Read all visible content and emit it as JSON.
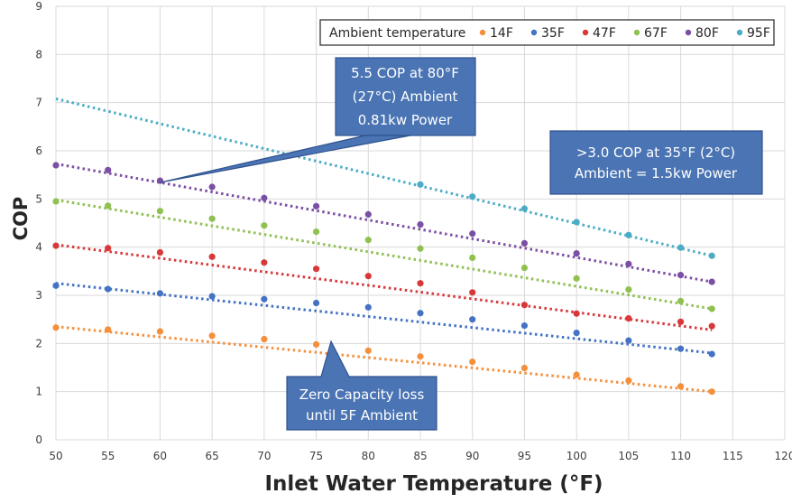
{
  "chart_data": {
    "type": "scatter",
    "title": "",
    "xlabel": "Inlet Water Temperature (°F)",
    "ylabel": "COP",
    "xlim": [
      50,
      120
    ],
    "ylim": [
      0,
      9
    ],
    "x_ticks": [
      50,
      55,
      60,
      65,
      70,
      75,
      80,
      85,
      90,
      95,
      100,
      105,
      110,
      115,
      120
    ],
    "y_ticks": [
      0,
      1,
      2,
      3,
      4,
      5,
      6,
      7,
      8,
      9
    ],
    "grid": true,
    "trendlines": "linear, dotted",
    "legend": {
      "title": "Ambient temperature",
      "placement": "top-right"
    },
    "series": [
      {
        "name": "14F",
        "color": "#f4903c",
        "x": [
          50,
          55,
          60,
          65,
          70,
          75,
          80,
          85,
          90,
          95,
          100,
          105,
          110,
          113
        ],
        "y": [
          2.33,
          2.29,
          2.25,
          2.16,
          2.09,
          1.98,
          1.85,
          1.73,
          1.62,
          1.49,
          1.35,
          1.23,
          1.11,
          1.0
        ],
        "trend": [
          2.35,
          1.0
        ]
      },
      {
        "name": "35F",
        "color": "#4472c4",
        "x": [
          50,
          55,
          60,
          65,
          70,
          75,
          80,
          85,
          90,
          95,
          100,
          105,
          110,
          113
        ],
        "y": [
          3.2,
          3.13,
          3.04,
          2.98,
          2.92,
          2.84,
          2.75,
          2.63,
          2.5,
          2.37,
          2.22,
          2.06,
          1.89,
          1.78
        ],
        "trend": [
          3.25,
          1.8
        ]
      },
      {
        "name": "47F",
        "color": "#d9383a",
        "x": [
          50,
          55,
          60,
          65,
          70,
          75,
          80,
          85,
          90,
          95,
          100,
          105,
          110,
          113
        ],
        "y": [
          4.03,
          3.98,
          3.89,
          3.8,
          3.68,
          3.55,
          3.4,
          3.25,
          3.06,
          2.8,
          2.62,
          2.52,
          2.45,
          2.36
        ],
        "trend": [
          4.05,
          2.28
        ]
      },
      {
        "name": "67F",
        "color": "#8fc050",
        "x": [
          50,
          55,
          60,
          65,
          70,
          75,
          80,
          85,
          90,
          95,
          100,
          105,
          110,
          113
        ],
        "y": [
          4.95,
          4.86,
          4.75,
          4.59,
          4.45,
          4.32,
          4.15,
          3.97,
          3.78,
          3.57,
          3.35,
          3.12,
          2.88,
          2.72
        ],
        "trend": [
          4.98,
          2.72
        ]
      },
      {
        "name": "80F",
        "color": "#7b4fa5",
        "x": [
          50,
          55,
          60,
          65,
          70,
          75,
          80,
          85,
          90,
          95,
          100,
          105,
          110,
          113
        ],
        "y": [
          5.7,
          5.6,
          5.38,
          5.25,
          5.02,
          4.85,
          4.68,
          4.47,
          4.28,
          4.08,
          3.87,
          3.65,
          3.42,
          3.28
        ],
        "trend": [
          5.73,
          3.28
        ]
      },
      {
        "name": "95F",
        "color": "#4bacc6",
        "x": [
          85,
          90,
          95,
          100,
          105,
          110,
          113
        ],
        "y": [
          5.3,
          5.05,
          4.8,
          4.52,
          4.25,
          3.99,
          3.82
        ],
        "trend": [
          7.08,
          3.82
        ]
      }
    ],
    "annotations": [
      {
        "lines": [
          "5.5 COP at 80°F",
          "(27°C) Ambient",
          "0.81kw Power"
        ]
      },
      {
        "lines": [
          ">3.0 COP at 35°F (2°C)",
          "Ambient = 1.5kw Power"
        ]
      },
      {
        "lines": [
          "Zero Capacity loss",
          "until 5F Ambient"
        ]
      }
    ]
  }
}
